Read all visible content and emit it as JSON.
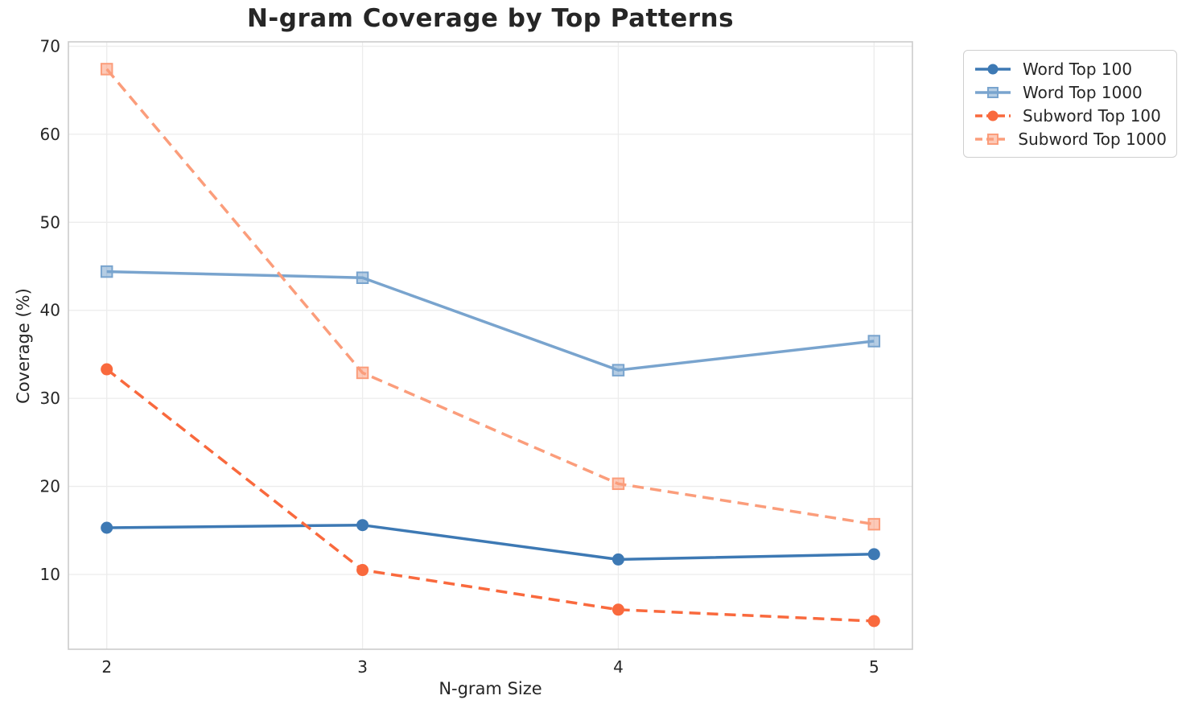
{
  "chart_data": {
    "type": "line",
    "title": "N-gram Coverage by Top Patterns",
    "xlabel": "N-gram Size",
    "ylabel": "Coverage (%)",
    "x": [
      2,
      3,
      4,
      5
    ],
    "xtick_labels": [
      "2",
      "3",
      "4",
      "5"
    ],
    "yticks": [
      10,
      20,
      30,
      40,
      50,
      60,
      70
    ],
    "xlim": [
      1.85,
      5.15
    ],
    "ylim": [
      1.5,
      70.5
    ],
    "grid": true,
    "legend_position": "outside-upper-right",
    "series": [
      {
        "name": "Word Top 100",
        "values": [
          15.3,
          15.6,
          11.7,
          12.3
        ],
        "color": "#3d79b4",
        "line_style": "solid",
        "marker": "circle"
      },
      {
        "name": "Word Top 1000",
        "values": [
          44.4,
          43.7,
          33.2,
          36.5
        ],
        "color": "#79a4ce",
        "line_style": "solid",
        "marker": "square"
      },
      {
        "name": "Subword Top 100",
        "values": [
          33.3,
          10.5,
          6.0,
          4.7
        ],
        "color": "#f9693d",
        "line_style": "dashed",
        "marker": "circle"
      },
      {
        "name": "Subword Top 1000",
        "values": [
          67.4,
          32.9,
          20.3,
          15.7
        ],
        "color": "#fb9d7b",
        "line_style": "dashed",
        "marker": "square"
      }
    ],
    "colors": {
      "grid": "#ececec",
      "spine": "#cccccc",
      "text": "#262626",
      "background": "#ffffff"
    }
  }
}
